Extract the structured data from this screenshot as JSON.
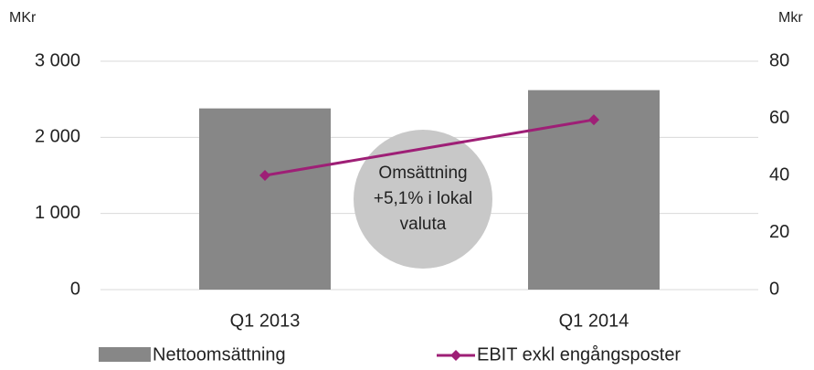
{
  "chart_data": {
    "type": "bar_line",
    "y_label": "MKr",
    "y2_label": "Mkr",
    "categories": [
      "Q1 2013",
      "Q1 2014"
    ],
    "series": [
      {
        "name": "Nettoomsättning",
        "type": "bar",
        "color": "#878787",
        "values": [
          2380,
          2620
        ]
      },
      {
        "name": "EBIT exkl engångsposter",
        "type": "line",
        "axis": "y2",
        "color": "#9e1f76",
        "values": [
          40,
          59.5
        ]
      }
    ],
    "ylim": [
      0,
      3000
    ],
    "yticks": [
      0,
      {
        "value": 1000,
        "label": "1 000"
      },
      {
        "value": 2000,
        "label": "2 000"
      },
      {
        "value": 3000,
        "label": "3 000"
      }
    ],
    "y2lim": [
      0,
      80
    ],
    "y2ticks": [
      0,
      20,
      40,
      60,
      80
    ],
    "grid": true,
    "annotation": [
      "Omsättning",
      "+5,1% i lokal",
      "valuta"
    ],
    "legend": "bottom"
  }
}
